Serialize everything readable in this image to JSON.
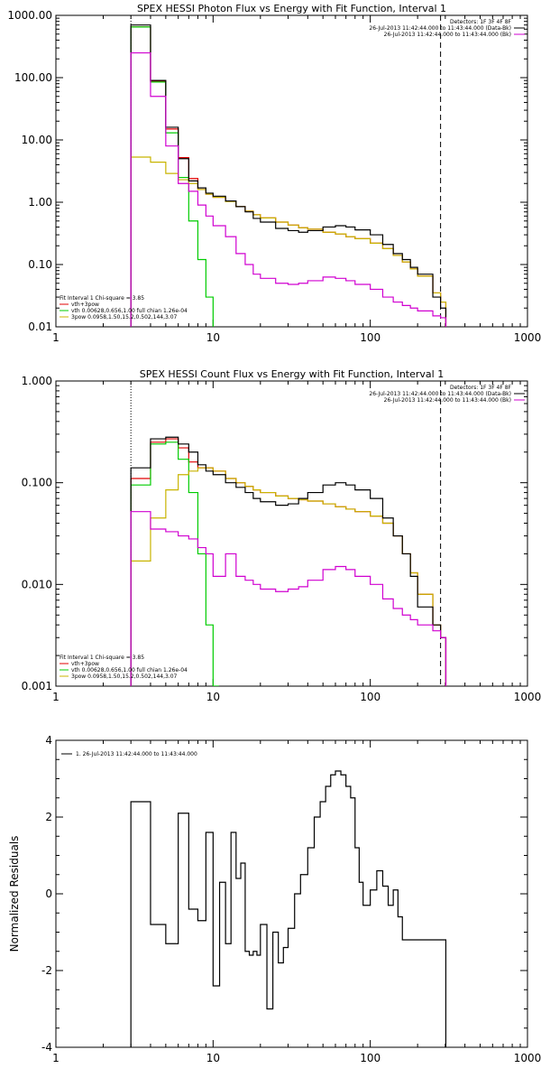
{
  "chart_data": [
    {
      "type": "line",
      "title": "SPEX HESSI Photon Flux vs Energy with Fit Function, Interval 1",
      "xscale": "log",
      "yscale": "log",
      "xlim": [
        1,
        1000
      ],
      "ylim": [
        0.01,
        1000
      ],
      "xticks": [
        1,
        10,
        100,
        1000
      ],
      "xticklabels": [
        "1",
        "10",
        "100",
        "1000"
      ],
      "yticks": [
        0.01,
        0.1,
        1,
        10,
        100,
        1000
      ],
      "yticklabels": [
        "0.01",
        "0.10",
        "1.00",
        "10.00",
        "100.00",
        "1000.00"
      ],
      "xlabel": "",
      "ylabel": "",
      "vlines": [
        {
          "x": 3.0,
          "style": "dotted"
        },
        {
          "x": 280,
          "style": "dashed"
        }
      ],
      "header_lines": [
        "Detectors: 1F 3F 4F 8F",
        "26-Jul-2013 11:42:44.000 to 11:43:44.000 (Data-Bk)",
        "26-Jul-2013 11:42:44.000 to 11:43:44.000 (Bk)"
      ],
      "legend_header": "Fit Interval  1    Chi-square = 3.85",
      "legend_position": "bottom-left",
      "series": [
        {
          "name": "vth+3pow",
          "color": "#e00000",
          "style": "step",
          "x": [
            3,
            4,
            5,
            6,
            7,
            8,
            9,
            10,
            12,
            14,
            16,
            18,
            20,
            25,
            30,
            35,
            40,
            50,
            60,
            70,
            80,
            100,
            120,
            140,
            160,
            180,
            200,
            250,
            280
          ],
          "y": [
            650,
            88,
            15,
            5.2,
            2.4,
            1.6,
            1.35,
            1.2,
            1.02,
            0.85,
            0.72,
            0.63,
            0.56,
            0.48,
            0.43,
            0.39,
            0.37,
            0.33,
            0.31,
            0.28,
            0.26,
            0.22,
            0.18,
            0.14,
            0.11,
            0.085,
            0.065,
            0.035,
            0.025
          ]
        },
        {
          "name": "vth 0.00628,0.656,1.00  full chian 1.26e-04",
          "color": "#00cc00",
          "style": "step",
          "x": [
            3,
            4,
            5,
            6,
            7,
            8,
            9,
            10
          ],
          "y": [
            650,
            85,
            13,
            2.5,
            0.5,
            0.12,
            0.03,
            0.005
          ]
        },
        {
          "name": "3pow 0.0958,1.50,15.2,0.502,144,3.07",
          "color": "#c8b400",
          "style": "step",
          "x": [
            3,
            4,
            5,
            6,
            7,
            8,
            9,
            10,
            12,
            14,
            16,
            18,
            20,
            25,
            30,
            35,
            40,
            50,
            60,
            70,
            80,
            100,
            120,
            140,
            160,
            180,
            200,
            250,
            280
          ],
          "y": [
            5.3,
            4.4,
            2.9,
            2.3,
            2.0,
            1.6,
            1.35,
            1.2,
            1.02,
            0.85,
            0.72,
            0.63,
            0.56,
            0.48,
            0.43,
            0.39,
            0.37,
            0.33,
            0.31,
            0.28,
            0.26,
            0.22,
            0.18,
            0.14,
            0.11,
            0.085,
            0.065,
            0.035,
            0.025
          ]
        },
        {
          "name": "data",
          "color": "#000000",
          "style": "step",
          "x": [
            3,
            4,
            5,
            6,
            7,
            8,
            9,
            10,
            12,
            14,
            16,
            18,
            20,
            25,
            30,
            35,
            40,
            50,
            60,
            70,
            80,
            100,
            120,
            140,
            160,
            180,
            200,
            250,
            280
          ],
          "y": [
            700,
            90,
            16,
            5.0,
            2.2,
            1.7,
            1.4,
            1.25,
            1.05,
            0.85,
            0.7,
            0.55,
            0.48,
            0.38,
            0.35,
            0.33,
            0.35,
            0.4,
            0.42,
            0.4,
            0.36,
            0.3,
            0.21,
            0.15,
            0.12,
            0.09,
            0.07,
            0.03,
            0.02
          ]
        },
        {
          "name": "bk",
          "color": "#d000d0",
          "style": "step",
          "x": [
            3,
            4,
            5,
            6,
            7,
            8,
            9,
            10,
            12,
            14,
            16,
            18,
            20,
            25,
            30,
            35,
            40,
            50,
            60,
            70,
            80,
            100,
            120,
            140,
            160,
            180,
            200,
            250,
            280
          ],
          "y": [
            250,
            50,
            8,
            2.0,
            1.5,
            0.9,
            0.6,
            0.42,
            0.28,
            0.15,
            0.1,
            0.07,
            0.06,
            0.05,
            0.048,
            0.05,
            0.055,
            0.063,
            0.06,
            0.055,
            0.048,
            0.04,
            0.03,
            0.025,
            0.022,
            0.02,
            0.018,
            0.015,
            0.014
          ]
        }
      ]
    },
    {
      "type": "line",
      "title": "SPEX HESSI Count Flux vs Energy with Fit Function, Interval 1",
      "xscale": "log",
      "yscale": "log",
      "xlim": [
        1,
        1000
      ],
      "ylim": [
        0.001,
        1
      ],
      "xticks": [
        1,
        10,
        100,
        1000
      ],
      "xticklabels": [
        "1",
        "10",
        "100",
        "1000"
      ],
      "yticks": [
        0.001,
        0.01,
        0.1,
        1
      ],
      "yticklabels": [
        "0.001",
        "0.010",
        "0.100",
        "1.000"
      ],
      "xlabel": "",
      "ylabel": "",
      "vlines": [
        {
          "x": 3.0,
          "style": "dotted"
        },
        {
          "x": 280,
          "style": "dashed"
        }
      ],
      "header_lines": [
        "Detectors: 1F 3F 4F 8F",
        "26-Jul-2013 11:42:44.000 to 11:43:44.000 (Data-Bk)",
        "26-Jul-2013 11:42:44.000 to 11:43:44.000 (Bk)"
      ],
      "legend_header": "Fit Interval  1    Chi-square = 3.85",
      "legend_position": "bottom-left",
      "series": [
        {
          "name": "vth+3pow",
          "color": "#e00000",
          "style": "step",
          "x": [
            3,
            4,
            5,
            6,
            7,
            8,
            9,
            10,
            12,
            14,
            16,
            18,
            20,
            25,
            30,
            35,
            40,
            50,
            60,
            70,
            80,
            100,
            120,
            140,
            160,
            180,
            200,
            250,
            280
          ],
          "y": [
            0.11,
            0.25,
            0.27,
            0.22,
            0.16,
            0.14,
            0.14,
            0.13,
            0.11,
            0.1,
            0.092,
            0.085,
            0.08,
            0.074,
            0.07,
            0.068,
            0.066,
            0.062,
            0.058,
            0.055,
            0.052,
            0.047,
            0.04,
            0.03,
            0.02,
            0.013,
            0.008,
            0.004,
            0.003
          ]
        },
        {
          "name": "vth 0.00628,0.656,1.00  full chian 1.26e-04",
          "color": "#00cc00",
          "style": "step",
          "x": [
            3,
            4,
            5,
            6,
            7,
            8,
            9,
            10
          ],
          "y": [
            0.095,
            0.24,
            0.25,
            0.17,
            0.08,
            0.02,
            0.004,
            0.001
          ]
        },
        {
          "name": "3pow 0.0958,1.50,15.2,0.502,144,3.07",
          "color": "#c8b400",
          "style": "step",
          "x": [
            3,
            4,
            5,
            6,
            7,
            8,
            9,
            10,
            12,
            14,
            16,
            18,
            20,
            25,
            30,
            35,
            40,
            50,
            60,
            70,
            80,
            100,
            120,
            140,
            160,
            180,
            200,
            250,
            280
          ],
          "y": [
            0.017,
            0.045,
            0.085,
            0.12,
            0.13,
            0.14,
            0.14,
            0.13,
            0.11,
            0.1,
            0.092,
            0.085,
            0.08,
            0.074,
            0.07,
            0.068,
            0.066,
            0.062,
            0.058,
            0.055,
            0.052,
            0.047,
            0.04,
            0.03,
            0.02,
            0.013,
            0.008,
            0.004,
            0.003
          ]
        },
        {
          "name": "data",
          "color": "#000000",
          "style": "step",
          "x": [
            3,
            4,
            5,
            6,
            7,
            8,
            9,
            10,
            12,
            14,
            16,
            18,
            20,
            25,
            30,
            35,
            40,
            50,
            60,
            70,
            80,
            100,
            120,
            140,
            160,
            180,
            200,
            250,
            280
          ],
          "y": [
            0.14,
            0.27,
            0.28,
            0.24,
            0.2,
            0.15,
            0.13,
            0.12,
            0.1,
            0.09,
            0.08,
            0.07,
            0.065,
            0.06,
            0.062,
            0.07,
            0.08,
            0.095,
            0.1,
            0.095,
            0.085,
            0.07,
            0.045,
            0.03,
            0.02,
            0.012,
            0.006,
            0.004,
            0.003
          ]
        },
        {
          "name": "bk",
          "color": "#d000d0",
          "style": "step",
          "x": [
            3,
            4,
            5,
            6,
            7,
            8,
            9,
            10,
            12,
            14,
            16,
            18,
            20,
            25,
            30,
            35,
            40,
            50,
            60,
            70,
            80,
            100,
            120,
            140,
            160,
            180,
            200,
            250,
            280
          ],
          "y": [
            0.052,
            0.035,
            0.033,
            0.03,
            0.028,
            0.023,
            0.02,
            0.012,
            0.02,
            0.012,
            0.011,
            0.01,
            0.009,
            0.0085,
            0.009,
            0.0095,
            0.011,
            0.014,
            0.015,
            0.014,
            0.012,
            0.01,
            0.0072,
            0.0058,
            0.005,
            0.0045,
            0.004,
            0.0035,
            0.003
          ]
        }
      ]
    },
    {
      "type": "line",
      "title": "",
      "xscale": "log",
      "yscale": "linear",
      "xlim": [
        1,
        1000
      ],
      "ylim": [
        -4,
        4
      ],
      "xticks": [
        1,
        10,
        100,
        1000
      ],
      "xticklabels": [
        "1",
        "10",
        "100",
        "1000"
      ],
      "yticks": [
        -4,
        -2,
        0,
        2,
        4
      ],
      "yticklabels": [
        "-4",
        "-2",
        "0",
        "2",
        "4"
      ],
      "xlabel": "",
      "ylabel": "Normalized Residuals",
      "legend_position": "top-left",
      "series": [
        {
          "name": "1. 26-Jul-2013 11:42:44.000 to 11:43:44.000",
          "color": "#000000",
          "style": "step",
          "x": [
            3,
            4,
            5,
            6,
            7,
            8,
            9,
            10,
            11,
            12,
            13,
            14,
            15,
            16,
            17,
            18,
            19,
            20,
            22,
            24,
            26,
            28,
            30,
            33,
            36,
            40,
            44,
            48,
            52,
            56,
            60,
            65,
            70,
            75,
            80,
            85,
            90,
            100,
            110,
            120,
            130,
            140,
            150,
            160,
            170,
            180,
            200,
            220,
            250,
            280
          ],
          "y": [
            2.4,
            -0.8,
            -1.3,
            2.1,
            -0.4,
            -0.7,
            1.6,
            -2.4,
            0.3,
            -1.3,
            1.6,
            0.4,
            0.8,
            -1.5,
            -1.6,
            -1.5,
            -1.6,
            -0.8,
            -3.0,
            -1.0,
            -1.8,
            -1.4,
            -0.9,
            0.0,
            0.5,
            1.2,
            2.0,
            2.4,
            2.8,
            3.1,
            3.2,
            3.1,
            2.8,
            2.5,
            1.2,
            0.3,
            -0.3,
            0.1,
            0.6,
            0.2,
            -0.3,
            0.1,
            -0.6,
            -1.2,
            -1.2,
            -1.2,
            -1.2,
            -1.2,
            -1.2,
            -1.2
          ]
        }
      ]
    }
  ]
}
